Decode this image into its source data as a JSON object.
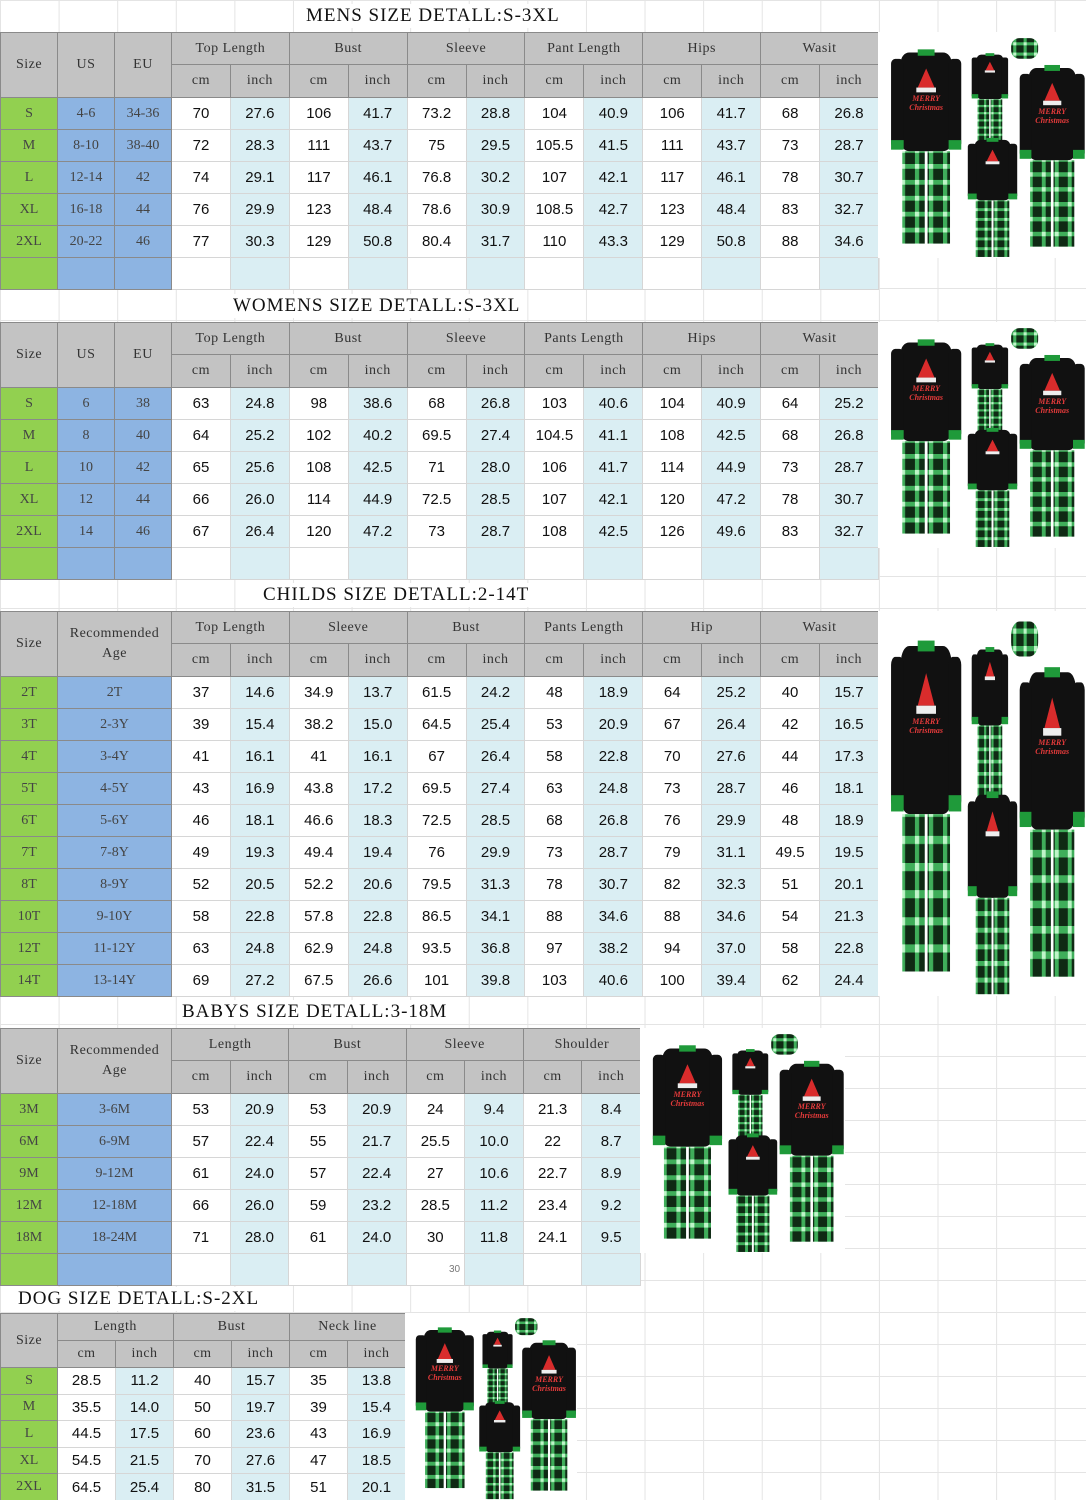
{
  "colors": {
    "header": "#c3c3c3",
    "size": "#92d050",
    "region": "#8db4e2",
    "inch": "#daeef3"
  },
  "sections": [
    {
      "title": "MENS  SIZE  DETALL:S-3XL",
      "first_headers": [
        "Size",
        "US",
        "EU"
      ],
      "groups": [
        "Top Length",
        "Bust",
        "Sleeve",
        "Pant Length",
        "Hips",
        "Wasit"
      ],
      "units": [
        "cm",
        "inch"
      ],
      "rows": [
        [
          "S",
          "4-6",
          "34-36",
          "70",
          "27.6",
          "106",
          "41.7",
          "73.2",
          "28.8",
          "104",
          "40.9",
          "106",
          "41.7",
          "68",
          "26.8"
        ],
        [
          "M",
          "8-10",
          "38-40",
          "72",
          "28.3",
          "111",
          "43.7",
          "75",
          "29.5",
          "105.5",
          "41.5",
          "111",
          "43.7",
          "73",
          "28.7"
        ],
        [
          "L",
          "12-14",
          "42",
          "74",
          "29.1",
          "117",
          "46.1",
          "76.8",
          "30.2",
          "107",
          "42.1",
          "117",
          "46.1",
          "78",
          "30.7"
        ],
        [
          "XL",
          "16-18",
          "44",
          "76",
          "29.9",
          "123",
          "48.4",
          "78.6",
          "30.9",
          "108.5",
          "42.7",
          "123",
          "48.4",
          "83",
          "32.7"
        ],
        [
          "2XL",
          "20-22",
          "46",
          "77",
          "30.3",
          "129",
          "50.8",
          "80.4",
          "31.7",
          "110",
          "43.3",
          "129",
          "50.8",
          "88",
          "34.6"
        ]
      ]
    },
    {
      "title": "WOMENS  SIZE  DETALL:S-3XL",
      "first_headers": [
        "Size",
        "US",
        "EU"
      ],
      "groups": [
        "Top Length",
        "Bust",
        "Sleeve",
        "Pants Length",
        "Hips",
        "Wasit"
      ],
      "units": [
        "cm",
        "inch"
      ],
      "rows": [
        [
          "S",
          "6",
          "38",
          "63",
          "24.8",
          "98",
          "38.6",
          "68",
          "26.8",
          "103",
          "40.6",
          "104",
          "40.9",
          "64",
          "25.2"
        ],
        [
          "M",
          "8",
          "40",
          "64",
          "25.2",
          "102",
          "40.2",
          "69.5",
          "27.4",
          "104.5",
          "41.1",
          "108",
          "42.5",
          "68",
          "26.8"
        ],
        [
          "L",
          "10",
          "42",
          "65",
          "25.6",
          "108",
          "42.5",
          "71",
          "28.0",
          "106",
          "41.7",
          "114",
          "44.9",
          "73",
          "28.7"
        ],
        [
          "XL",
          "12",
          "44",
          "66",
          "26.0",
          "114",
          "44.9",
          "72.5",
          "28.5",
          "107",
          "42.1",
          "120",
          "47.2",
          "78",
          "30.7"
        ],
        [
          "2XL",
          "14",
          "46",
          "67",
          "26.4",
          "120",
          "47.2",
          "73",
          "28.7",
          "108",
          "42.5",
          "126",
          "49.6",
          "83",
          "32.7"
        ]
      ]
    },
    {
      "title": "CHILDS  SIZE  DETALL:2-14T",
      "first_headers": [
        "Size",
        "Recommended Age"
      ],
      "groups": [
        "Top Length",
        "Sleeve",
        "Bust",
        "Pants Length",
        "Hip",
        "Wasit"
      ],
      "units": [
        "cm",
        "inch"
      ],
      "rows": [
        [
          "2T",
          "2T",
          "37",
          "14.6",
          "34.9",
          "13.7",
          "61.5",
          "24.2",
          "48",
          "18.9",
          "64",
          "25.2",
          "40",
          "15.7"
        ],
        [
          "3T",
          "2-3Y",
          "39",
          "15.4",
          "38.2",
          "15.0",
          "64.5",
          "25.4",
          "53",
          "20.9",
          "67",
          "26.4",
          "42",
          "16.5"
        ],
        [
          "4T",
          "3-4Y",
          "41",
          "16.1",
          "41",
          "16.1",
          "67",
          "26.4",
          "58",
          "22.8",
          "70",
          "27.6",
          "44",
          "17.3"
        ],
        [
          "5T",
          "4-5Y",
          "43",
          "16.9",
          "43.8",
          "17.2",
          "69.5",
          "27.4",
          "63",
          "24.8",
          "73",
          "28.7",
          "46",
          "18.1"
        ],
        [
          "6T",
          "5-6Y",
          "46",
          "18.1",
          "46.6",
          "18.3",
          "72.5",
          "28.5",
          "68",
          "26.8",
          "76",
          "29.9",
          "48",
          "18.9"
        ],
        [
          "7T",
          "7-8Y",
          "49",
          "19.3",
          "49.4",
          "19.4",
          "76",
          "29.9",
          "73",
          "28.7",
          "79",
          "31.1",
          "49.5",
          "19.5"
        ],
        [
          "8T",
          "8-9Y",
          "52",
          "20.5",
          "52.2",
          "20.6",
          "79.5",
          "31.3",
          "78",
          "30.7",
          "82",
          "32.3",
          "51",
          "20.1"
        ],
        [
          "10T",
          "9-10Y",
          "58",
          "22.8",
          "57.8",
          "22.8",
          "86.5",
          "34.1",
          "88",
          "34.6",
          "88",
          "34.6",
          "54",
          "21.3"
        ],
        [
          "12T",
          "11-12Y",
          "63",
          "24.8",
          "62.9",
          "24.8",
          "93.5",
          "36.8",
          "97",
          "38.2",
          "94",
          "37.0",
          "58",
          "22.8"
        ],
        [
          "14T",
          "13-14Y",
          "69",
          "27.2",
          "67.5",
          "26.6",
          "101",
          "39.8",
          "103",
          "40.6",
          "100",
          "39.4",
          "62",
          "24.4"
        ]
      ]
    },
    {
      "title": "BABYS  SIZE  DETALL:3-18M",
      "first_headers": [
        "Size",
        "Recommended Age"
      ],
      "groups": [
        "Length",
        "Bust",
        "Sleeve",
        "Shoulder"
      ],
      "units": [
        "cm",
        "inch"
      ],
      "rows": [
        [
          "3M",
          "3-6M",
          "53",
          "20.9",
          "53",
          "20.9",
          "24",
          "9.4",
          "21.3",
          "8.4"
        ],
        [
          "6M",
          "6-9M",
          "57",
          "22.4",
          "55",
          "21.7",
          "25.5",
          "10.0",
          "22",
          "8.7"
        ],
        [
          "9M",
          "9-12M",
          "61",
          "24.0",
          "57",
          "22.4",
          "27",
          "10.6",
          "22.7",
          "8.9"
        ],
        [
          "12M",
          "12-18M",
          "66",
          "26.0",
          "59",
          "23.2",
          "28.5",
          "11.2",
          "23.4",
          "9.2"
        ],
        [
          "18M",
          "18-24M",
          "71",
          "28.0",
          "61",
          "24.0",
          "30",
          "11.8",
          "24.1",
          "9.5"
        ]
      ],
      "note": "30"
    },
    {
      "title": "DOG  SIZE  DETALL:S-2XL",
      "first_headers": [
        "Size"
      ],
      "groups": [
        "Length",
        "Bust",
        "Neck line"
      ],
      "units": [
        "cm",
        "inch"
      ],
      "rows": [
        [
          "S",
          "28.5",
          "11.2",
          "40",
          "15.7",
          "35",
          "13.8"
        ],
        [
          "M",
          "35.5",
          "14.0",
          "50",
          "19.7",
          "39",
          "15.4"
        ],
        [
          "L",
          "44.5",
          "17.5",
          "60",
          "23.6",
          "43",
          "16.9"
        ],
        [
          "XL",
          "54.5",
          "21.5",
          "70",
          "27.6",
          "47",
          "18.5"
        ],
        [
          "2XL",
          "64.5",
          "25.4",
          "80",
          "31.5",
          "51",
          "20.1"
        ]
      ]
    }
  ],
  "product_image": {
    "icon": "family-christmas-pajamas-image",
    "print_text": "MERRY Christmas"
  }
}
